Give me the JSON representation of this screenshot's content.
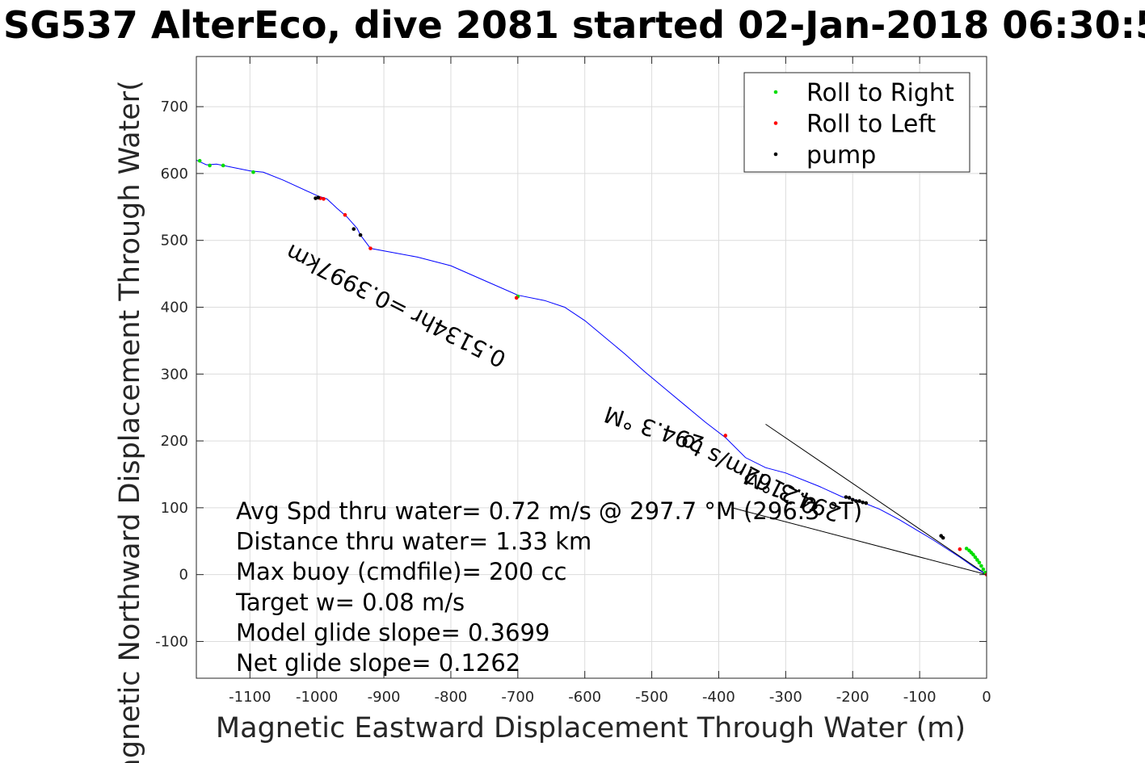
{
  "chart_data": {
    "type": "line",
    "title": "SG537 AlterEco, dive 2081 started 02-Jan-2018 06:30:5",
    "xlabel": "Magnetic Eastward Displacement Through Water (m)",
    "ylabel": "Magnetic Northward Displacement Through Water(",
    "xlim": [
      -1180,
      0
    ],
    "ylim": [
      -155,
      775
    ],
    "xticks": [
      -1100,
      -1000,
      -900,
      -800,
      -700,
      -600,
      -500,
      -400,
      -300,
      -200,
      -100,
      0
    ],
    "yticks": [
      -100,
      0,
      100,
      200,
      300,
      400,
      500,
      600,
      700
    ],
    "grid": true,
    "legend_position": "top-right",
    "legend": [
      {
        "label": "Roll to Right",
        "color": "#00dd00"
      },
      {
        "label": "Roll to Left",
        "color": "#ff0000"
      },
      {
        "label": "pump",
        "color": "#000000"
      }
    ],
    "track": {
      "color": "#0000ff",
      "x": [
        0,
        -20,
        -40,
        -60,
        -80,
        -100,
        -130,
        -160,
        -185,
        -200,
        -215,
        -250,
        -300,
        -330,
        -360,
        -390,
        -420,
        -450,
        -480,
        -510,
        -540,
        -570,
        -600,
        -630,
        -660,
        -700,
        -750,
        -800,
        -850,
        -920,
        -935,
        -940,
        -955,
        -970,
        -985,
        -1000,
        -1050,
        -1080,
        -1100,
        -1150,
        -1165,
        -1180
      ],
      "y": [
        0,
        12,
        26,
        39,
        52,
        64,
        82,
        98,
        108,
        113,
        116,
        132,
        152,
        160,
        175,
        205,
        228,
        253,
        278,
        303,
        330,
        355,
        380,
        400,
        410,
        418,
        440,
        462,
        475,
        488,
        508,
        518,
        535,
        548,
        562,
        567,
        590,
        602,
        604,
        614,
        613,
        620
      ]
    },
    "series": [
      {
        "name": "Roll to Right",
        "color": "#00dd00",
        "x": [
          -2,
          -5,
          -8,
          -11,
          -14,
          -17,
          -20,
          -23,
          -26,
          -30,
          -700,
          -1095,
          -1140,
          -1160,
          -1175
        ],
        "y": [
          3,
          8,
          13,
          18,
          22,
          26,
          30,
          33,
          36,
          39,
          416,
          602,
          612,
          612,
          619
        ]
      },
      {
        "name": "Roll to Left",
        "color": "#ff0000",
        "x": [
          0,
          -40,
          -390,
          -702,
          -920,
          -958,
          -990,
          -995
        ],
        "y": [
          0,
          38,
          208,
          414,
          488,
          538,
          562,
          563
        ]
      },
      {
        "name": "pump",
        "color": "#000000",
        "x": [
          -210,
          -205,
          -200,
          -195,
          -190,
          -185,
          -180,
          -68,
          -65,
          -935,
          -945,
          -998,
          -1002
        ],
        "y": [
          116,
          115,
          112,
          110,
          110,
          108,
          107,
          58,
          55,
          508,
          517,
          564,
          563
        ]
      }
    ],
    "reference_lines": [
      {
        "x": [
          0,
          -330
        ],
        "y": [
          0,
          225
        ]
      },
      {
        "x": [
          0,
          -380
        ],
        "y": [
          0,
          100
        ]
      }
    ],
    "rotated_annotations": [
      {
        "text": "0.5134hr =0.3997km",
        "x": -715,
        "y": 330,
        "angle": 207
      },
      {
        "text": "294.3 °M",
        "x": -420,
        "y": 205,
        "angle": 198
      },
      {
        "text": "0.2162m/s to",
        "x": -250,
        "y": 110,
        "angle": 207
      },
      {
        "text": "294.3 °M",
        "x": -215,
        "y": 100,
        "angle": 203
      }
    ],
    "annotations": [
      "Avg Spd thru water=  0.72 m/s @ 297.7 °M (296.3 °T)",
      "Distance thru water=  1.33 km",
      "Max buoy (cmdfile)= 200 cc",
      "Target w= 0.08 m/s",
      "Model glide slope= 0.3699",
      "Net glide slope= 0.1262"
    ]
  }
}
